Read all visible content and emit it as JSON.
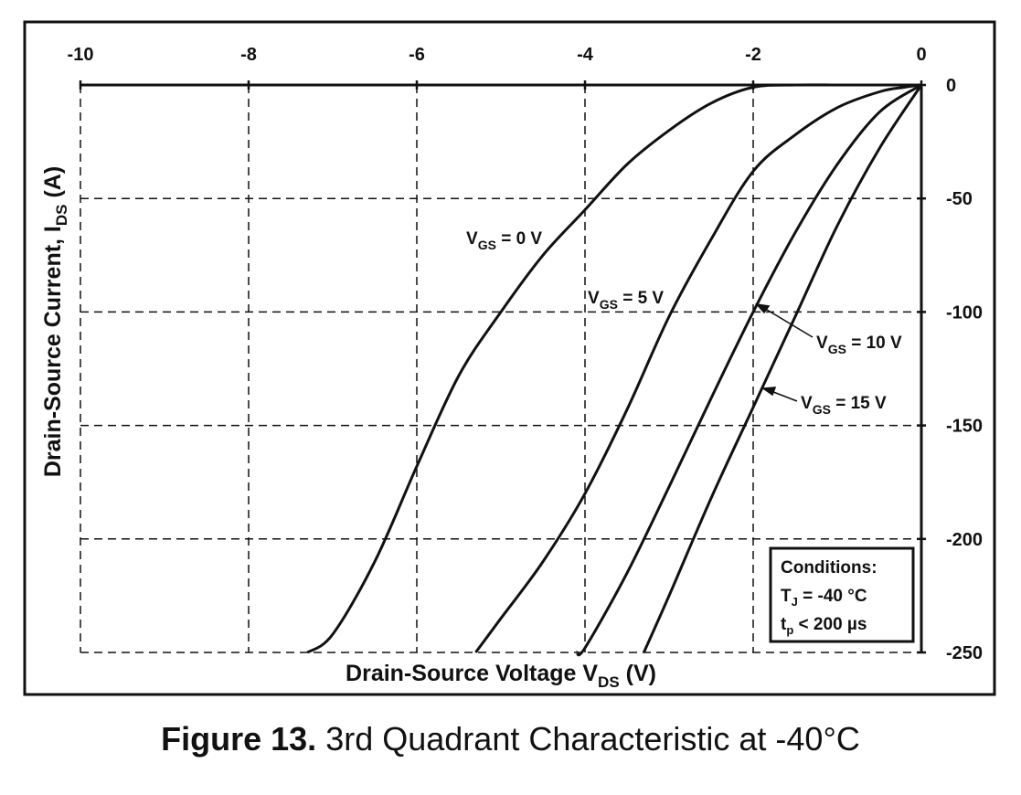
{
  "figure": {
    "label": "Figure 13.",
    "caption_text": "3rd Quadrant Characteristic at -40°C"
  },
  "conditions": {
    "title": "Conditions:",
    "tj_label": "T",
    "tj_sub": "J",
    "tj_value": " = -40 °C",
    "tp_label": "t",
    "tp_sub": "p",
    "tp_value": " < 200 µs"
  },
  "chart_data": {
    "type": "line",
    "title": "",
    "xlabel": {
      "main": "Drain-Source Voltage V",
      "sub": "DS",
      "unit": " (V)"
    },
    "ylabel": {
      "main": "Drain-Source Current, I",
      "sub": "DS",
      "unit": " (A)"
    },
    "xlim": [
      -10,
      0
    ],
    "ylim": [
      -250,
      0
    ],
    "x_ticks": [
      -10,
      -8,
      -6,
      -4,
      -2,
      0
    ],
    "y_ticks": [
      0,
      -50,
      -100,
      -150,
      -200,
      -250
    ],
    "x_tick_labels": [
      "-10",
      "-8",
      "-6",
      "-4",
      "-2",
      "0"
    ],
    "y_tick_labels": [
      "0",
      "-50",
      "-100",
      "-150",
      "-200",
      "-250"
    ],
    "grid": true,
    "grid_style": "dashed",
    "x_axis_position": "top",
    "y_axis_position": "right",
    "series": [
      {
        "name": "V_GS = 0 V",
        "label_main": "V",
        "label_sub": "GS",
        "label_value": " = 0 V",
        "x": [
          0,
          -0.5,
          -1.0,
          -1.5,
          -2.0,
          -2.5,
          -3.0,
          -3.5,
          -4.0,
          -4.5,
          -5.0,
          -5.5,
          -6.0,
          -6.5,
          -7.0,
          -7.3
        ],
        "y": [
          0,
          0,
          0,
          0,
          -1,
          -8,
          -20,
          -35,
          -55,
          -75,
          -100,
          -128,
          -168,
          -210,
          -242,
          -250
        ]
      },
      {
        "name": "V_GS = 5 V",
        "label_main": "V",
        "label_sub": "GS",
        "label_value": " = 5 V",
        "x": [
          0,
          -0.2,
          -0.5,
          -1.0,
          -1.5,
          -2.0,
          -2.5,
          -3.0,
          -3.5,
          -4.0,
          -4.5,
          -5.0,
          -5.3
        ],
        "y": [
          0,
          -1,
          -3,
          -10,
          -22,
          -38,
          -68,
          -102,
          -143,
          -180,
          -210,
          -235,
          -250
        ]
      },
      {
        "name": "V_GS = 10 V",
        "label_main": "V",
        "label_sub": "GS",
        "label_value": " = 10 V",
        "x": [
          0,
          -0.5,
          -1.0,
          -1.5,
          -2.0,
          -2.5,
          -3.0,
          -3.5,
          -4.0,
          -4.1
        ],
        "y": [
          0,
          -12,
          -35,
          -65,
          -100,
          -138,
          -177,
          -215,
          -248,
          -250
        ]
      },
      {
        "name": "V_GS = 15 V",
        "label_main": "V",
        "label_sub": "GS",
        "label_value": " = 15 V",
        "x": [
          0,
          -0.5,
          -1.0,
          -1.5,
          -2.0,
          -2.5,
          -3.0,
          -3.3
        ],
        "y": [
          0,
          -28,
          -62,
          -102,
          -142,
          -182,
          -225,
          -250
        ]
      }
    ]
  }
}
